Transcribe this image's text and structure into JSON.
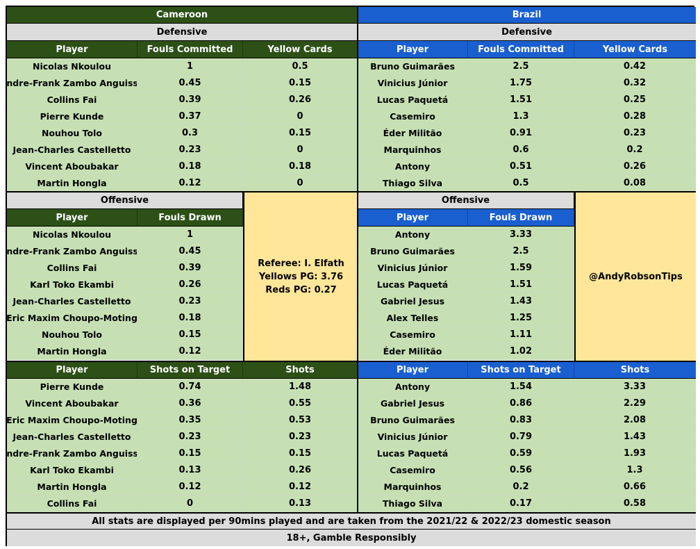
{
  "cameroon": {
    "team": "Cameroon",
    "defensive_label": "Defensive",
    "offensive_label": "Offensive",
    "defensive": {
      "headers": [
        "Player",
        "Fouls Committed",
        "Yellow Cards"
      ],
      "rows": [
        [
          "Nicolas Nkoulou",
          "1",
          "0.5"
        ],
        [
          "Andre-Frank Zambo Anguissa",
          "0.45",
          "0.15"
        ],
        [
          "Collins Fai",
          "0.39",
          "0.26"
        ],
        [
          "Pierre Kunde",
          "0.37",
          "0"
        ],
        [
          "Nouhou Tolo",
          "0.3",
          "0.15"
        ],
        [
          "Jean-Charles Castelletto",
          "0.23",
          "0"
        ],
        [
          "Vincent Aboubakar",
          "0.18",
          "0.18"
        ],
        [
          "Martin Hongla",
          "0.12",
          "0"
        ]
      ]
    },
    "offensive": {
      "headers": [
        "Player",
        "Fouls Drawn"
      ],
      "rows": [
        [
          "Nicolas Nkoulou",
          "1"
        ],
        [
          "Andre-Frank Zambo Anguissa",
          "0.45"
        ],
        [
          "Collins Fai",
          "0.39"
        ],
        [
          "Karl Toko Ekambi",
          "0.26"
        ],
        [
          "Jean-Charles Castelletto",
          "0.23"
        ],
        [
          "Eric Maxim Choupo-Moting",
          "0.18"
        ],
        [
          "Nouhou Tolo",
          "0.15"
        ],
        [
          "Martin Hongla",
          "0.12"
        ]
      ]
    },
    "shots": {
      "headers": [
        "Player",
        "Shots on Target",
        "Shots"
      ],
      "rows": [
        [
          "Pierre Kunde",
          "0.74",
          "1.48"
        ],
        [
          "Vincent Aboubakar",
          "0.36",
          "0.55"
        ],
        [
          "Eric Maxim Choupo-Moting",
          "0.35",
          "0.53"
        ],
        [
          "Jean-Charles Castelletto",
          "0.23",
          "0.23"
        ],
        [
          "Andre-Frank Zambo Anguissa",
          "0.15",
          "0.15"
        ],
        [
          "Karl Toko Ekambi",
          "0.13",
          "0.26"
        ],
        [
          "Martin Hongla",
          "0.12",
          "0.12"
        ],
        [
          "Collins Fai",
          "0",
          "0.13"
        ]
      ]
    }
  },
  "brazil": {
    "team": "Brazil",
    "defensive_label": "Defensive",
    "offensive_label": "Offensive",
    "defensive": {
      "headers": [
        "Player",
        "Fouls Committed",
        "Yellow Cards"
      ],
      "rows": [
        [
          "Bruno Guimarães",
          "2.5",
          "0.42"
        ],
        [
          "Vinicius Júnior",
          "1.75",
          "0.32"
        ],
        [
          "Lucas Paquetá",
          "1.51",
          "0.25"
        ],
        [
          "Casemiro",
          "1.3",
          "0.28"
        ],
        [
          "Éder Militão",
          "0.91",
          "0.23"
        ],
        [
          "Marquinhos",
          "0.6",
          "0.2"
        ],
        [
          "Antony",
          "0.51",
          "0.26"
        ],
        [
          "Thiago Silva",
          "0.5",
          "0.08"
        ]
      ]
    },
    "offensive": {
      "headers": [
        "Player",
        "Fouls Drawn"
      ],
      "rows": [
        [
          "Antony",
          "3.33"
        ],
        [
          "Bruno Guimarães",
          "2.5"
        ],
        [
          "Vinicius Júnior",
          "1.59"
        ],
        [
          "Lucas Paquetá",
          "1.51"
        ],
        [
          "Gabriel Jesus",
          "1.43"
        ],
        [
          "Alex Telles",
          "1.25"
        ],
        [
          "Casemiro",
          "1.11"
        ],
        [
          "Éder Militão",
          "1.02"
        ]
      ]
    },
    "shots": {
      "headers": [
        "Player",
        "Shots on Target",
        "Shots"
      ],
      "rows": [
        [
          "Antony",
          "1.54",
          "3.33"
        ],
        [
          "Gabriel Jesus",
          "0.86",
          "2.29"
        ],
        [
          "Bruno Guimarães",
          "0.83",
          "2.08"
        ],
        [
          "Vinicius Júnior",
          "0.79",
          "1.43"
        ],
        [
          "Lucas Paquetá",
          "0.59",
          "1.93"
        ],
        [
          "Casemiro",
          "0.56",
          "1.3"
        ],
        [
          "Marquinhos",
          "0.2",
          "0.66"
        ],
        [
          "Thiago Silva",
          "0.17",
          "0.58"
        ]
      ]
    }
  },
  "referee": {
    "name": "Referee: I. Elfath",
    "yellows": "Yellows PG: 3.76",
    "reds": "Reds PG: 0.27"
  },
  "handle": "@AndyRobsonTips",
  "footer": {
    "note": "All stats are displayed per 90mins played and are taken from the 2021/22 & 2022/23 domestic season",
    "disclaimer": "18+, Gamble Responsibly"
  },
  "colors": {
    "cameroon_header": "#2d5016",
    "brazil_header": "#1a5fd0",
    "data_fill": "#c6e0b4",
    "note_fill": "#ffe699",
    "section_fill": "#dcdcdc"
  }
}
